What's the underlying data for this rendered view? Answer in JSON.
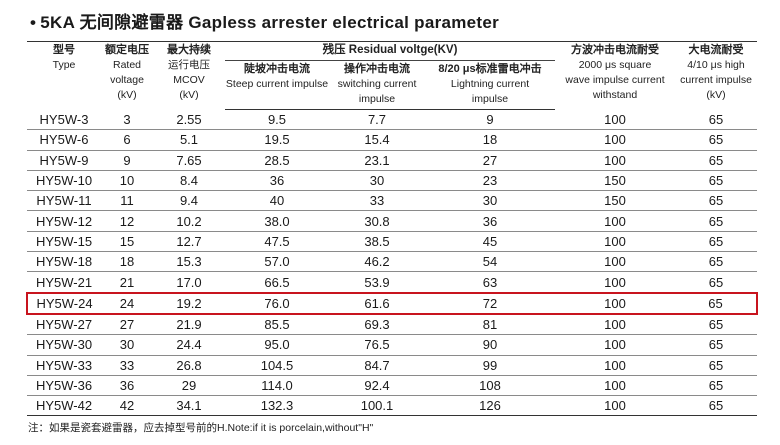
{
  "title": {
    "bullet": "•",
    "text": "5KA  无间隙避雷器  Gapless arrester electrical parameter"
  },
  "header": {
    "model_cn": "型号",
    "model_en": "Type",
    "rated_cn": "额定电压",
    "rated_en1": "Rated",
    "rated_en2": "voltage",
    "rated_en3": "(kV)",
    "mcov_cn1": "最大持续",
    "mcov_cn2": "运行电压",
    "mcov_en1": "MCOV",
    "mcov_en2": "(kV)",
    "residual": "残压 Residual voltge(KV)",
    "steep_cn": "陡坡冲击电流",
    "steep_en": "Steep current impulse",
    "switch_cn": "操作冲击电流",
    "switch_en1": "switching current",
    "switch_en2": "impulse",
    "light_cn": "8/20 μs标准雷电冲击",
    "light_en1": "Lightning current",
    "light_en2": "impulse",
    "square_cn": "方波冲击电流耐受",
    "square_en1": "2000 μs square",
    "square_en2": "wave impulse current",
    "square_en3": "withstand",
    "high_cn": "大电流耐受",
    "high_en1": "4/10 μs high",
    "high_en2": "current impulse",
    "high_en3": "(kV)"
  },
  "rows": [
    [
      "HY5W-3",
      "3",
      "2.55",
      "9.5",
      "7.7",
      "9",
      "100",
      "65"
    ],
    [
      "HY5W-6",
      "6",
      "5.1",
      "19.5",
      "15.4",
      "18",
      "100",
      "65"
    ],
    [
      "HY5W-9",
      "9",
      "7.65",
      "28.5",
      "23.1",
      "27",
      "100",
      "65"
    ],
    [
      "HY5W-10",
      "10",
      "8.4",
      "36",
      "30",
      "23",
      "150",
      "65"
    ],
    [
      "HY5W-11",
      "11",
      "9.4",
      "40",
      "33",
      "30",
      "150",
      "65"
    ],
    [
      "HY5W-12",
      "12",
      "10.2",
      "38.0",
      "30.8",
      "36",
      "100",
      "65"
    ],
    [
      "HY5W-15",
      "15",
      "12.7",
      "47.5",
      "38.5",
      "45",
      "100",
      "65"
    ],
    [
      "HY5W-18",
      "18",
      "15.3",
      "57.0",
      "46.2",
      "54",
      "100",
      "65"
    ],
    [
      "HY5W-21",
      "21",
      "17.0",
      "66.5",
      "53.9",
      "63",
      "100",
      "65"
    ],
    [
      "HY5W-24",
      "24",
      "19.2",
      "76.0",
      "61.6",
      "72",
      "100",
      "65"
    ],
    [
      "HY5W-27",
      "27",
      "21.9",
      "85.5",
      "69.3",
      "81",
      "100",
      "65"
    ],
    [
      "HY5W-30",
      "30",
      "24.4",
      "95.0",
      "76.5",
      "90",
      "100",
      "65"
    ],
    [
      "HY5W-33",
      "33",
      "26.8",
      "104.5",
      "84.7",
      "99",
      "100",
      "65"
    ],
    [
      "HY5W-36",
      "36",
      "29",
      "114.0",
      "92.4",
      "108",
      "100",
      "65"
    ],
    [
      "HY5W-42",
      "42",
      "34.1",
      "132.3",
      "100.1",
      "126",
      "100",
      "65"
    ]
  ],
  "highlighted_row": "HY5W-24",
  "highlight_color": "#c8141e",
  "note": "注：如果是瓷套避雷器，应去掉型号前的H.Note:if it is porcelain,without\"H\""
}
